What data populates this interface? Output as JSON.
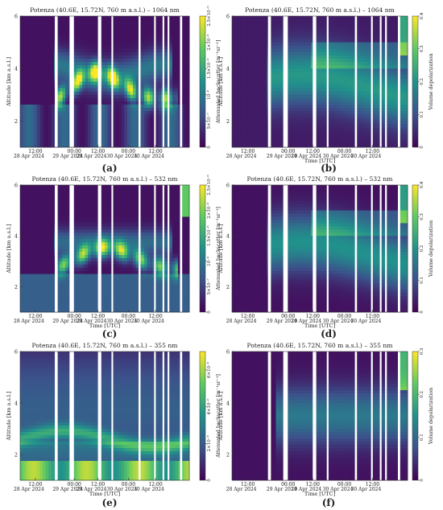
{
  "figure": {
    "panel_letters": [
      "(a)",
      "(b)",
      "(c)",
      "(d)",
      "(e)",
      "(f)"
    ]
  },
  "colors": {
    "colormap": [
      "#440154",
      "#3b528b",
      "#21918c",
      "#5ec962",
      "#fde725"
    ],
    "gap": "#ffffff"
  },
  "chart_data": [
    {
      "type": "heatmap",
      "id": "a",
      "title": "Potenza (40.6E, 15.72N, 760 m a.s.l.) – 1064 nm",
      "ylabel": "Altitude [km a.s.l.]",
      "xlabel": "",
      "yticks": [
        "2",
        "4",
        "6"
      ],
      "ylim": [
        1,
        6
      ],
      "xticks": [
        "12:00",
        "00:00",
        "12:00",
        "00:00",
        "12:00"
      ],
      "xdates": [
        "28 Apr 2024",
        "29 Apr 2024",
        "29 Apr 2024",
        "30 Apr 2024",
        "30 Apr 2024"
      ],
      "colorbar_label": "Attenuated backscatter [m⁻¹sr⁻¹]",
      "colorbar_ticks": [
        "0",
        "5×10⁻⁷",
        "10⁻⁶",
        "1.5×10⁻⁶",
        "2×10⁻⁶",
        "2.5×10⁻⁶"
      ],
      "zlim": [
        0,
        2.5e-06
      ],
      "variable": "attenuated backscatter"
    },
    {
      "type": "heatmap",
      "id": "b",
      "title": "Potenza (40.6E, 15.72N, 760 m a.s.l.) – 1064 nm",
      "ylabel": "Altitude [km a.s.l.]",
      "xlabel": "Time [UTC]",
      "yticks": [
        "2",
        "4",
        "6"
      ],
      "ylim": [
        1,
        6
      ],
      "xticks": [
        "12:00",
        "00:00",
        "12:00",
        "00:00",
        "12:00"
      ],
      "xdates": [
        "28 Apr 2024",
        "29 Apr 2024",
        "29 Apr 2024",
        "30 Apr 2024",
        "30 Apr 2024"
      ],
      "colorbar_label": "Volume depolarization",
      "colorbar_ticks": [
        "0",
        "0.1",
        "0.2",
        "0.3",
        "0.4"
      ],
      "zlim": [
        0,
        0.4
      ],
      "variable": "volume depolarization"
    },
    {
      "type": "heatmap",
      "id": "c",
      "title": "Potenza (40.6E, 15.72N, 760 m a.s.l.) – 532 nm",
      "ylabel": "Altitude [km a.s.l.]",
      "xlabel": "Time [UTC]",
      "yticks": [
        "2",
        "4",
        "6"
      ],
      "ylim": [
        1,
        6
      ],
      "xticks": [
        "12:00",
        "00:00",
        "12:00",
        "00:00",
        "12:00"
      ],
      "xdates": [
        "28 Apr 2024",
        "29 Apr 2024",
        "29 Apr 2024",
        "30 Apr 2024",
        "30 Apr 2024"
      ],
      "colorbar_label": "Attenuated backscatter [m⁻¹sr⁻¹]",
      "colorbar_ticks": [
        "0",
        "5×10⁻⁷",
        "10⁻⁶",
        "1.5×10⁻⁶",
        "2×10⁻⁶",
        "2.5×10⁻⁶"
      ],
      "zlim": [
        0,
        2.5e-06
      ],
      "variable": "attenuated backscatter"
    },
    {
      "type": "heatmap",
      "id": "d",
      "title": "Potenza (40.6E, 15.72N, 760 m a.s.l.) – 532 nm",
      "ylabel": "Altitude [km a.s.l.]",
      "xlabel": "Time [UTC]",
      "yticks": [
        "2",
        "4",
        "6"
      ],
      "ylim": [
        1,
        6
      ],
      "xticks": [
        "12:00",
        "00:00",
        "12:00",
        "00:00",
        "12:00"
      ],
      "xdates": [
        "28 Apr 2024",
        "29 Apr 2024",
        "29 Apr 2024",
        "30 Apr 2024",
        "30 Apr 2024"
      ],
      "colorbar_label": "Volume depolarization",
      "colorbar_ticks": [
        "0",
        "0.1",
        "0.2",
        "0.3",
        "0.4"
      ],
      "zlim": [
        0,
        0.4
      ],
      "variable": "volume depolarization"
    },
    {
      "type": "heatmap",
      "id": "e",
      "title": "Potenza (40.6E, 15.72N, 760 m a.s.l.) – 355 nm",
      "ylabel": "Altitude [km a.s.l.]",
      "xlabel": "Time [UTC]",
      "yticks": [
        "2",
        "4",
        "6"
      ],
      "ylim": [
        1,
        6
      ],
      "xticks": [
        "12:00",
        "00:00",
        "12:00",
        "00:00",
        "12:00"
      ],
      "xdates": [
        "28 Apr 2024",
        "29 Apr 2024",
        "29 Apr 2024",
        "30 Apr 2024",
        "30 Apr 2024"
      ],
      "colorbar_label": "Attenuated backscatter [m⁻¹sr⁻¹]",
      "colorbar_ticks": [
        "0",
        "2×10⁻⁶",
        "4×10⁻⁶",
        "6×10⁻⁶"
      ],
      "zlim": [
        0,
        7e-06
      ],
      "variable": "attenuated backscatter"
    },
    {
      "type": "heatmap",
      "id": "f",
      "title": "Potenza (40.6E, 15.72N, 760 m a.s.l.) – 355 nm",
      "ylabel": "Altitude [km a.s.l.]",
      "xlabel": "Time [UTC]",
      "yticks": [
        "2",
        "4",
        "6"
      ],
      "ylim": [
        1,
        6
      ],
      "xticks": [
        "12:00",
        "00:00",
        "12:00",
        "00:00",
        "12:00"
      ],
      "xdates": [
        "28 Apr 2024",
        "29 Apr 2024",
        "29 Apr 2024",
        "30 Apr 2024",
        "30 Apr 2024"
      ],
      "colorbar_label": "Volume depolarization",
      "colorbar_ticks": [
        "0",
        "0.1",
        "0.2",
        "0.3"
      ],
      "zlim": [
        0,
        0.3
      ],
      "variable": "volume depolarization"
    }
  ]
}
